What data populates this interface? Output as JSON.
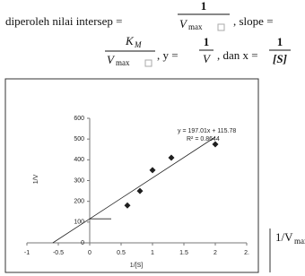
{
  "text": {
    "t1": "diperoleh nilai intersep =",
    "f1_num": "1",
    "f1_den": "V",
    "f1_sub": "max",
    "t2": ", slope =",
    "f2_num": "K",
    "f2_num_sub": "M",
    "f2_den": "V",
    "f2_sub": "max",
    "t3": ", y =",
    "f3_num": "1",
    "f3_den": "V",
    "t4": ", dan x =",
    "f4_num": "1",
    "f4_den": "[S]"
  },
  "chart_data": {
    "type": "scatter",
    "x_label": "1/[S]",
    "y_label": "1/V",
    "x": [
      0.6,
      0.8,
      1.0,
      1.3,
      2.0
    ],
    "values": [
      180,
      250,
      350,
      410,
      475
    ],
    "color": "#1f1f1f",
    "trendline": {
      "slope": 197.01,
      "intercept": 115.78,
      "label": "y = 197.01x + 115.78",
      "r2_label": "R² = 0.8644"
    },
    "xlim": [
      -1,
      2.5
    ],
    "xticks": [
      -1,
      -0.5,
      0,
      0.5,
      1,
      1.5,
      2,
      {
        "value": 2.5,
        "label": "2."
      }
    ],
    "ylim": [
      0,
      600
    ],
    "yticks": [
      0,
      100,
      200,
      300,
      400,
      500,
      600
    ]
  },
  "side_label": {
    "main": "1/V",
    "sub": "max"
  }
}
